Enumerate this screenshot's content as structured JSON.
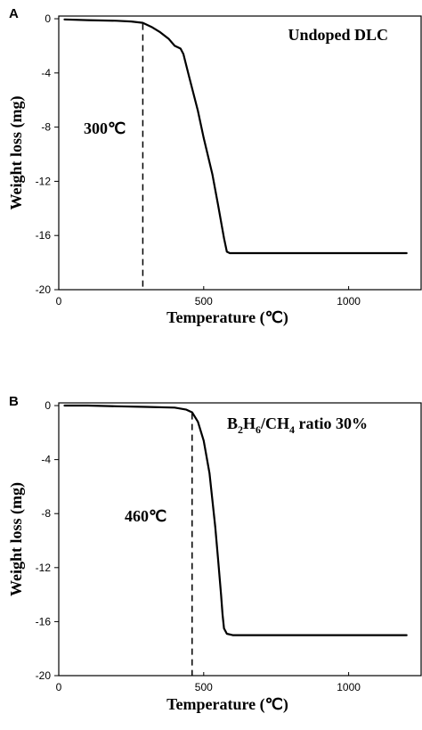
{
  "chart_data": [
    {
      "type": "line",
      "panel": "A",
      "title": "",
      "xlabel": "Temperature (℃)",
      "ylabel": "Weight loss (mg)",
      "xlim": [
        0,
        1250
      ],
      "ylim": [
        -20,
        0.2
      ],
      "xticks": [
        0,
        500,
        1000
      ],
      "xtick_labels": [
        "0",
        "500",
        "1000"
      ],
      "yticks": [
        0,
        -4,
        -8,
        -12,
        -16,
        -20
      ],
      "ytick_labels": [
        "0",
        "-4",
        "-8",
        "-12",
        "-16",
        "-20"
      ],
      "annotation_main": "Undoped DLC",
      "annotation_onset": "300℃",
      "onset_x": 290,
      "grid": false,
      "series": [
        {
          "x": [
            20,
            100,
            200,
            250,
            290,
            320,
            350,
            380,
            400,
            420,
            430,
            450,
            480,
            500,
            530,
            550,
            570,
            580,
            590,
            600,
            700,
            800,
            1000,
            1200
          ],
          "y": [
            -0.05,
            -0.1,
            -0.15,
            -0.2,
            -0.3,
            -0.6,
            -1.0,
            -1.5,
            -2.0,
            -2.2,
            -2.6,
            -4.3,
            -6.8,
            -8.8,
            -11.5,
            -13.8,
            -16.2,
            -17.2,
            -17.3,
            -17.3,
            -17.3,
            -17.3,
            -17.3,
            -17.3
          ]
        }
      ]
    },
    {
      "type": "line",
      "panel": "B",
      "title": "",
      "xlabel": "Temperature (℃)",
      "ylabel": "Weight loss (mg)",
      "xlim": [
        0,
        1250
      ],
      "ylim": [
        -20,
        0.2
      ],
      "xticks": [
        0,
        500,
        1000
      ],
      "xtick_labels": [
        "0",
        "500",
        "1000"
      ],
      "yticks": [
        0,
        -4,
        -8,
        -12,
        -16,
        -20
      ],
      "ytick_labels": [
        "0",
        "-4",
        "-8",
        "-12",
        "-16",
        "-20"
      ],
      "annotation_main_parts": [
        "B",
        "2",
        "H",
        "6",
        "/CH",
        "4",
        " ratio 30%"
      ],
      "annotation_onset": "460℃",
      "onset_x": 460,
      "grid": false,
      "series": [
        {
          "x": [
            20,
            100,
            200,
            300,
            400,
            440,
            460,
            480,
            500,
            520,
            540,
            550,
            560,
            565,
            570,
            580,
            600,
            700,
            800,
            1000,
            1200
          ],
          "y": [
            0.0,
            0.0,
            -0.05,
            -0.1,
            -0.15,
            -0.3,
            -0.5,
            -1.2,
            -2.6,
            -5.0,
            -9.0,
            -11.5,
            -14.0,
            -15.5,
            -16.5,
            -16.9,
            -17.0,
            -17.0,
            -17.0,
            -17.0,
            -17.0
          ]
        }
      ]
    }
  ]
}
